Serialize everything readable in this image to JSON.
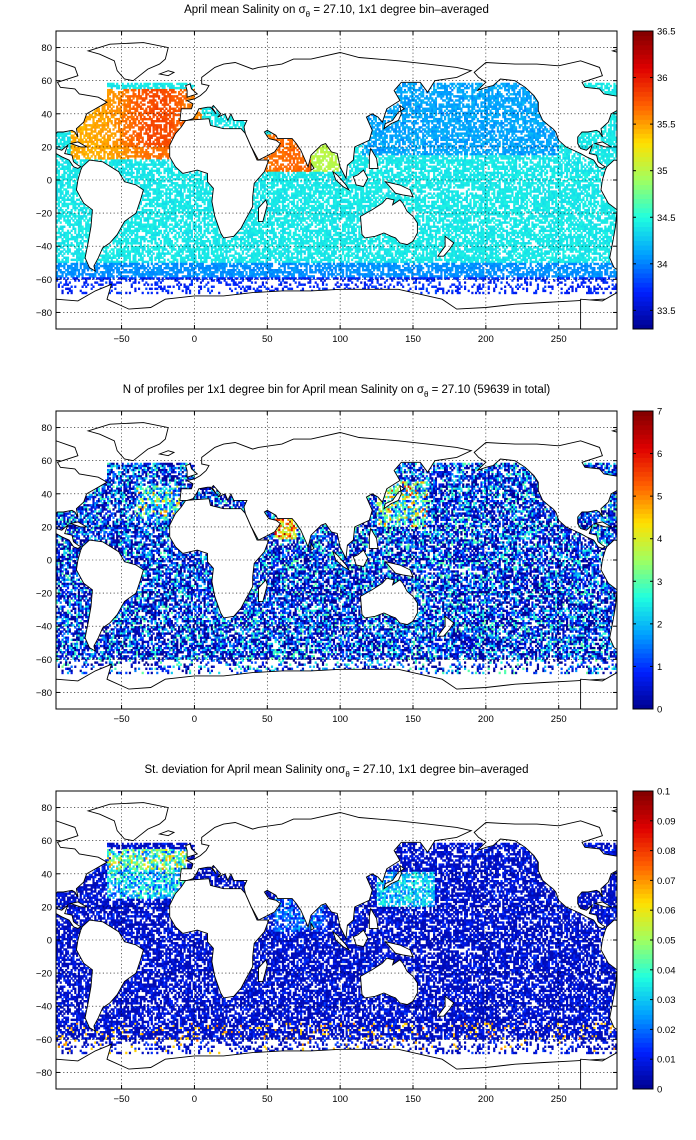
{
  "palette": [
    "#00008f",
    "#0020ff",
    "#00a0ff",
    "#20ffdf",
    "#a0ff60",
    "#ffe000",
    "#ff6000",
    "#df0000",
    "#800000"
  ],
  "land_color": "#ffffff",
  "chart_data": [
    {
      "type": "heatmap",
      "title": "April mean Salinity on σθ = 27.10, 1x1 degree bin–averaged",
      "title_parts": {
        "pre": "April mean Salinity on ",
        "sym": "σ",
        "sub": "θ",
        "post": " = 27.10, 1x1 degree bin–averaged"
      },
      "xlabel": "",
      "ylabel": "",
      "xlim": [
        -95,
        290
      ],
      "ylim": [
        -90,
        90
      ],
      "x_ticks": [
        -50,
        0,
        50,
        100,
        150,
        200,
        250
      ],
      "x_tick_labels": [
        "−50",
        "0",
        "50",
        "100",
        "150",
        "200",
        "250"
      ],
      "y_ticks": [
        80,
        60,
        40,
        20,
        0,
        -20,
        -40,
        -60,
        -80
      ],
      "y_tick_labels": [
        "80",
        "60",
        "40",
        "20",
        "0",
        "−20",
        "−40",
        "−60",
        "−80"
      ],
      "grid": true,
      "colorbar": {
        "min": 33.3,
        "max": 36.5,
        "ticks": [
          33.5,
          34,
          34.5,
          35,
          35.5,
          36,
          36.5
        ],
        "tick_labels": [
          "33.5",
          "34",
          "34.5",
          "35",
          "35.5",
          "36",
          "36.5"
        ]
      }
    },
    {
      "type": "heatmap",
      "title": "N of profiles per 1x1 degree bin for April mean Salinity on σθ = 27.10 (59639 in total)",
      "title_parts": {
        "pre": "N of profiles per 1x1 degree bin for April mean Salinity on ",
        "sym": "σ",
        "sub": "θ",
        "post": " = 27.10 (59639 in total)"
      },
      "xlabel": "",
      "ylabel": "",
      "xlim": [
        -95,
        290
      ],
      "ylim": [
        -90,
        90
      ],
      "x_ticks": [
        -50,
        0,
        50,
        100,
        150,
        200,
        250
      ],
      "x_tick_labels": [
        "−50",
        "0",
        "50",
        "100",
        "150",
        "200",
        "250"
      ],
      "y_ticks": [
        80,
        60,
        40,
        20,
        0,
        -20,
        -40,
        -60,
        -80
      ],
      "y_tick_labels": [
        "80",
        "60",
        "40",
        "20",
        "0",
        "−20",
        "−40",
        "−60",
        "−80"
      ],
      "grid": true,
      "total_profiles": 59639,
      "colorbar": {
        "min": 0,
        "max": 7,
        "ticks": [
          0,
          1,
          2,
          3,
          4,
          5,
          6,
          7
        ],
        "tick_labels": [
          "0",
          "1",
          "2",
          "3",
          "4",
          "5",
          "6",
          "7"
        ]
      }
    },
    {
      "type": "heatmap",
      "title": "St. deviation for April mean Salinity onσθ = 27.10, 1x1 degree bin–averaged",
      "title_parts": {
        "pre": "St. deviation for April mean Salinity on",
        "sym": "σ",
        "sub": "θ",
        "post": " = 27.10, 1x1 degree bin–averaged"
      },
      "xlabel": "",
      "ylabel": "",
      "xlim": [
        -95,
        290
      ],
      "ylim": [
        -90,
        90
      ],
      "x_ticks": [
        -50,
        0,
        50,
        100,
        150,
        200,
        250
      ],
      "x_tick_labels": [
        "−50",
        "0",
        "50",
        "100",
        "150",
        "200",
        "250"
      ],
      "y_ticks": [
        80,
        60,
        40,
        20,
        0,
        -20,
        -40,
        -60,
        -80
      ],
      "y_tick_labels": [
        "80",
        "60",
        "40",
        "20",
        "0",
        "−20",
        "−40",
        "−60",
        "−80"
      ],
      "grid": true,
      "colorbar": {
        "min": 0,
        "max": 0.1,
        "ticks": [
          0,
          0.01,
          0.02,
          0.03,
          0.04,
          0.05,
          0.06,
          0.07,
          0.08,
          0.09,
          0.1
        ],
        "tick_labels": [
          "0",
          "0.01",
          "0.02",
          "0.03",
          "0.04",
          "0.05",
          "0.06",
          "0.07",
          "0.08",
          "0.09",
          "0.1"
        ]
      }
    }
  ]
}
